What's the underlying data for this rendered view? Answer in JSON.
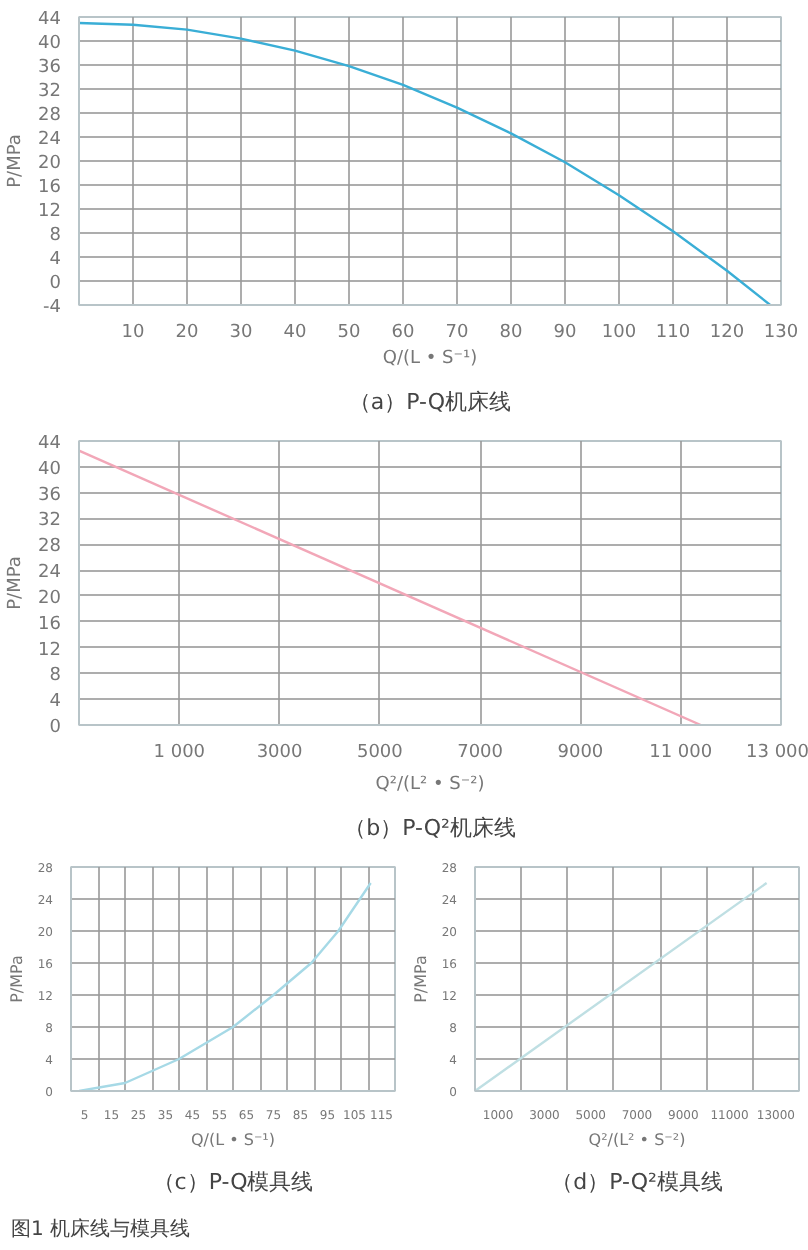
{
  "chart_data": [
    {
      "type": "line",
      "title": "（a）P-Q机床线",
      "xlabel": "Q/(L • S⁻¹)",
      "ylabel": "P/MPa",
      "xlim": [
        0,
        130
      ],
      "ylim": [
        -4,
        44
      ],
      "xticks": [
        10,
        20,
        30,
        40,
        50,
        60,
        70,
        80,
        90,
        100,
        110,
        120,
        130
      ],
      "yticks": [
        -4,
        0,
        4,
        8,
        12,
        16,
        20,
        24,
        28,
        32,
        36,
        40,
        44
      ],
      "grid": true,
      "series": [
        {
          "color": "#3aaed6",
          "x": [
            0,
            10,
            20,
            30,
            40,
            50,
            60,
            70,
            80,
            90,
            100,
            110,
            120,
            128
          ],
          "values": [
            43,
            42.7,
            41.9,
            40.4,
            38.4,
            35.8,
            32.7,
            28.9,
            24.6,
            19.8,
            14.3,
            8.3,
            1.7,
            -4
          ]
        }
      ]
    },
    {
      "type": "line",
      "title": "（b）P-Q²机床线",
      "xlabel": "Q²/(L² • S⁻²)",
      "ylabel": "P/MPa",
      "xlim": [
        -1000,
        13000
      ],
      "ylim": [
        0,
        44
      ],
      "xticks": [
        {
          "value": 1000,
          "label": "1 000"
        },
        3000,
        5000,
        7000,
        9000,
        {
          "value": 11000,
          "label": "11 000"
        },
        {
          "value": 13000,
          "label": "13 000"
        }
      ],
      "yticks": [
        0,
        4,
        8,
        12,
        16,
        20,
        24,
        28,
        32,
        36,
        40,
        44
      ],
      "grid": true,
      "series": [
        {
          "color": "#f2a7b8",
          "x": [
            -1000,
            11400
          ],
          "values": [
            42.5,
            0
          ]
        }
      ]
    },
    {
      "type": "line",
      "title": "（c）P-Q模具线",
      "xlabel": "Q/(L • S⁻¹)",
      "ylabel": "P/MPa",
      "xlim": [
        0,
        120
      ],
      "ylim": [
        0,
        28
      ],
      "xticks": [
        5,
        {
          "value": 10,
          "label": null
        },
        15,
        {
          "value": 20,
          "label": null
        },
        25,
        {
          "value": 30,
          "label": null
        },
        35,
        {
          "value": 40,
          "label": null
        },
        45,
        {
          "value": 50,
          "label": null
        },
        55,
        {
          "value": 60,
          "label": null
        },
        65,
        {
          "value": 70,
          "label": null
        },
        75,
        {
          "value": 80,
          "label": null
        },
        85,
        {
          "value": 90,
          "label": null
        },
        95,
        {
          "value": 100,
          "label": null
        },
        105,
        {
          "value": 110,
          "label": null
        },
        115
      ],
      "yticks": [
        0,
        4,
        8,
        12,
        16,
        20,
        24,
        28
      ],
      "grid": true,
      "annotations": [
        "图1 机床线与模具线"
      ],
      "series": [
        {
          "color": "#a6d9e6",
          "x": [
            3,
            20,
            40,
            60,
            75,
            89,
            99,
            111
          ],
          "values": [
            0,
            1,
            4,
            8,
            12,
            16,
            20,
            26
          ]
        }
      ]
    },
    {
      "type": "line",
      "title": "（d）P-Q²模具线",
      "xlabel": "Q²/(L² • S⁻²)",
      "ylabel": "P/MPa",
      "xlim": [
        0,
        14000
      ],
      "ylim": [
        0,
        28
      ],
      "xticks": [
        1000,
        {
          "value": 2000,
          "label": null
        },
        3000,
        {
          "value": 4000,
          "label": null
        },
        5000,
        {
          "value": 6000,
          "label": null
        },
        7000,
        {
          "value": 8000,
          "label": null
        },
        9000,
        {
          "value": 10000,
          "label": null
        },
        11000,
        {
          "value": 12000,
          "label": null
        },
        13000
      ],
      "yticks": [
        0,
        4,
        8,
        12,
        16,
        20,
        24,
        28
      ],
      "grid": true,
      "series": [
        {
          "color": "#bfdfe3",
          "x": [
            0,
            12600
          ],
          "values": [
            0,
            26
          ]
        }
      ]
    }
  ]
}
